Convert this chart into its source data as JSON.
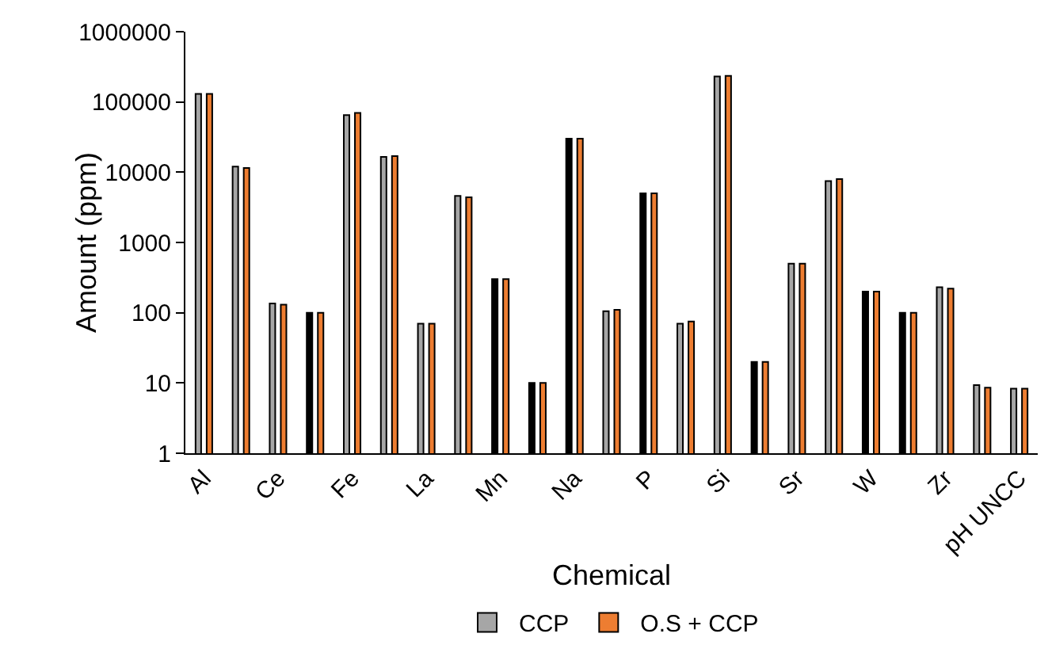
{
  "chart_data": {
    "type": "bar",
    "xlabel": "Chemical",
    "ylabel": "Amount (ppm)",
    "categories": [
      "Al",
      null,
      "Ce",
      null,
      "Fe",
      null,
      "La",
      null,
      "Mn",
      null,
      "Na",
      null,
      "P",
      null,
      "Si",
      null,
      "Sr",
      null,
      "W",
      null,
      "Zr",
      null,
      "pH UNCC"
    ],
    "series": [
      {
        "name": "CCP",
        "color": "#a6a6a6",
        "colors": [
          "#a6a6a6",
          "#a6a6a6",
          "#a6a6a6",
          "#000000",
          "#a6a6a6",
          "#a6a6a6",
          "#a6a6a6",
          "#a6a6a6",
          "#000000",
          "#000000",
          "#000000",
          "#a6a6a6",
          "#000000",
          "#a6a6a6",
          "#a6a6a6",
          "#000000",
          "#a6a6a6",
          "#a6a6a6",
          "#000000",
          "#000000",
          "#a6a6a6",
          "#a6a6a6",
          "#a6a6a6"
        ],
        "values": [
          130000,
          12000,
          135,
          100,
          65000,
          16500,
          70,
          4600,
          300,
          10,
          30000,
          105,
          5000,
          70,
          230000,
          20,
          500,
          7500,
          200,
          100,
          230,
          9.3,
          8.3
        ]
      },
      {
        "name": "O.S + CCP",
        "color": "#ed7d31",
        "values": [
          130000,
          11500,
          130,
          100,
          70000,
          17000,
          70,
          4400,
          300,
          10,
          30000,
          110,
          5000,
          75,
          235000,
          20,
          500,
          8000,
          200,
          100,
          220,
          8.6,
          8.3
        ]
      }
    ],
    "log": true,
    "ylim": [
      1,
      1000000
    ],
    "yticks": [
      1,
      10,
      100,
      1000,
      10000,
      100000,
      1000000
    ],
    "grid": false,
    "legend": "bottom"
  }
}
